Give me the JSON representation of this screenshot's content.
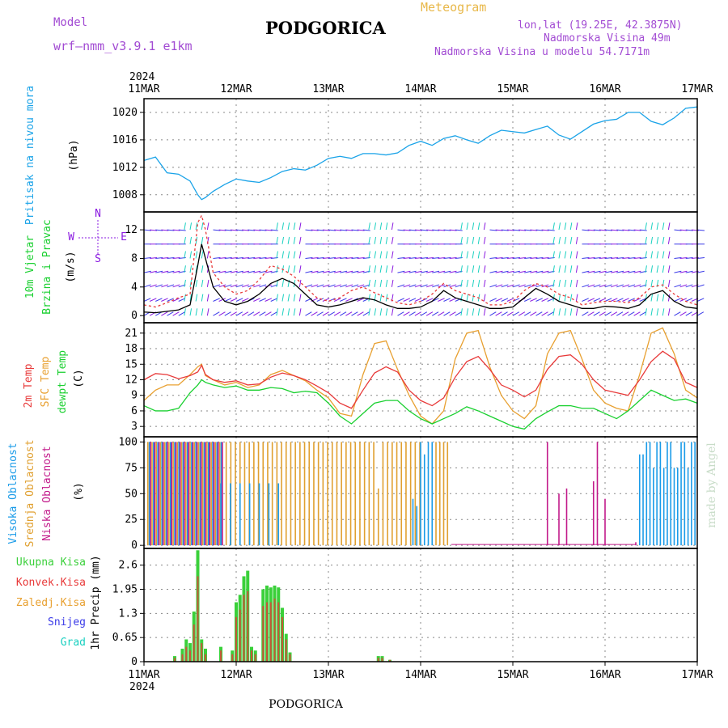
{
  "header": {
    "title": "PODGORICA",
    "meteogram": "Meteogram",
    "model_label": "Model",
    "model_name": "wrf—nmm_v3.9.1  e1km",
    "lonlat": "lon,lat (19.25E, 42.3875N)",
    "elevation": "Nadmorska Visina 49m",
    "elevation_model": "Nadmorska Visina u modelu 54.7171m"
  },
  "footer": {
    "station": "PODGORICA",
    "credit": "made by Angel"
  },
  "colors": {
    "pressure": "#1aa3e8",
    "wind_speed": "#000000",
    "wind_gust": "#e83a3a",
    "barb_blue": "#3a3ae8",
    "barb_purple": "#8a1ae0",
    "barb_teal": "#1ad0c0",
    "barb_green": "#1ad030",
    "temp2m": "#e83a3a",
    "temp_sfc": "#e8a030",
    "dewpoint": "#1ad030",
    "cloud_high": "#1a9be8",
    "cloud_mid": "#e0a030",
    "cloud_low": "#c21a8a",
    "precip_total": "#3ad03a",
    "precip_conv": "#e83a3a"
  },
  "chart_data": {
    "type": "line",
    "year": "2024",
    "x_ticks": [
      "11MAR",
      "12MAR",
      "13MAR",
      "14MAR",
      "15MAR",
      "16MAR",
      "17MAR"
    ],
    "panels": [
      {
        "id": "pressure",
        "ylabel": [
          "Pritisak na nivou mora",
          "(hPa)"
        ],
        "yticks": [
          1008,
          1012,
          1016,
          1020
        ],
        "ylim": [
          1005.5,
          1022
        ],
        "series": [
          {
            "name": "Pritisak na nivou mora",
            "x_hours": [
              0,
              3,
              6,
              9,
              12,
              14,
              15,
              16,
              18,
              21,
              24,
              27,
              30,
              33,
              36,
              39,
              42,
              45,
              48,
              51,
              54,
              57,
              60,
              63,
              66,
              69,
              72,
              75,
              78,
              81,
              84,
              87,
              90,
              93,
              96,
              99,
              102,
              105,
              108,
              111,
              114,
              117,
              120,
              123,
              126,
              129,
              132,
              135,
              138,
              141,
              144
            ],
            "values": [
              1013,
              1013.5,
              1011.2,
              1011,
              1010,
              1008,
              1007.3,
              1007.6,
              1008.5,
              1009.5,
              1010.3,
              1010,
              1009.8,
              1010.5,
              1011.4,
              1011.8,
              1011.6,
              1012.3,
              1013.3,
              1013.6,
              1013.3,
              1014,
              1014,
              1013.8,
              1014.1,
              1015.2,
              1015.8,
              1015.2,
              1016.2,
              1016.6,
              1016,
              1015.5,
              1016.6,
              1017.4,
              1017.2,
              1017,
              1017.5,
              1018,
              1016.7,
              1016.1,
              1017.2,
              1018.3,
              1018.8,
              1019,
              1020,
              1020,
              1018.7,
              1018.2,
              1019.2,
              1020.6,
              1020.8
            ]
          }
        ]
      },
      {
        "id": "wind",
        "ylabel": [
          "10m Vjetar",
          "Brzina i Pravac",
          "(m/s)"
        ],
        "compass": [
          "N",
          "W",
          "E",
          "S"
        ],
        "yticks": [
          0,
          4,
          8,
          12
        ],
        "ylim": [
          -1,
          14.5
        ],
        "series": [
          {
            "name": "speed",
            "x_hours": [
              0,
              3,
              6,
              9,
              12,
              14,
              15,
              16,
              18,
              21,
              24,
              27,
              30,
              33,
              36,
              39,
              42,
              45,
              48,
              51,
              54,
              57,
              60,
              63,
              66,
              69,
              72,
              75,
              78,
              81,
              84,
              87,
              90,
              93,
              96,
              99,
              102,
              105,
              108,
              111,
              114,
              117,
              120,
              123,
              126,
              129,
              132,
              135,
              138,
              141,
              144
            ],
            "values": [
              0.5,
              0.4,
              0.6,
              0.8,
              1.5,
              7,
              10,
              8,
              4,
              2,
              1.5,
              2,
              3,
              4.5,
              5.2,
              4.5,
              3,
              1.5,
              1.2,
              1.5,
              2,
              2.5,
              2.2,
              1.5,
              1,
              1,
              1.2,
              2,
              3.5,
              2.5,
              2,
              1.5,
              1,
              1,
              1.2,
              2.5,
              3.8,
              3,
              2,
              1.5,
              1,
              1,
              1.3,
              1.2,
              1,
              1.5,
              3,
              3.5,
              2,
              1.2,
              1
            ]
          },
          {
            "name": "gust",
            "x_hours": [
              0,
              3,
              6,
              9,
              12,
              14,
              15,
              16,
              18,
              21,
              24,
              27,
              30,
              33,
              36,
              39,
              42,
              45,
              48,
              51,
              54,
              57,
              60,
              63,
              66,
              69,
              72,
              75,
              78,
              81,
              84,
              87,
              90,
              93,
              96,
              99,
              102,
              105,
              108,
              111,
              114,
              117,
              120,
              123,
              126,
              129,
              132,
              135,
              138,
              141,
              144
            ],
            "values": [
              1.5,
              1.2,
              1.8,
              2.5,
              3,
              13,
              14,
              12,
              6,
              4,
              3,
              3.5,
              5,
              7,
              6.5,
              5.5,
              4,
              2.5,
              2,
              2.5,
              3.5,
              4,
              3.2,
              2.5,
              1.8,
              1.5,
              2,
              3,
              4.5,
              3.5,
              3,
              2.5,
              1.5,
              1.5,
              2,
              3.5,
              4.5,
              4,
              3,
              2.5,
              1.5,
              1.8,
              2,
              2,
              1.8,
              2.5,
              4,
              4.3,
              3,
              2,
              1.5
            ]
          }
        ]
      },
      {
        "id": "temperature",
        "ylabel": [
          "2m Temp",
          "SFC Temp",
          "dewpt Temp",
          "(C)"
        ],
        "yticks": [
          3,
          6,
          9,
          12,
          15,
          18,
          21
        ],
        "ylim": [
          1,
          23
        ],
        "series": [
          {
            "name": "2m Temp",
            "x_hours": [
              0,
              3,
              6,
              9,
              12,
              14,
              15,
              16,
              18,
              21,
              24,
              27,
              30,
              33,
              36,
              39,
              42,
              45,
              48,
              51,
              54,
              57,
              60,
              63,
              66,
              69,
              72,
              75,
              78,
              81,
              84,
              87,
              90,
              93,
              96,
              99,
              102,
              105,
              108,
              111,
              114,
              117,
              120,
              123,
              126,
              129,
              132,
              135,
              138,
              141,
              144
            ],
            "values": [
              12,
              13.2,
              13,
              12.2,
              12.8,
              13.5,
              14.8,
              13,
              12,
              11.5,
              11.8,
              11,
              11.2,
              12.5,
              13.3,
              12.8,
              12,
              10.8,
              9.5,
              7.5,
              6.5,
              10,
              13.3,
              14.5,
              13.5,
              10,
              8,
              7,
              8.5,
              12.5,
              15.5,
              16.5,
              14,
              11,
              10,
              8.7,
              10,
              14,
              16.5,
              16.8,
              15,
              12,
              10,
              9.5,
              9,
              12,
              15.5,
              17.5,
              16,
              11.5,
              10.5
            ]
          },
          {
            "name": "SFC Temp",
            "x_hours": [
              0,
              3,
              6,
              9,
              12,
              14,
              15,
              16,
              18,
              21,
              24,
              27,
              30,
              33,
              36,
              39,
              42,
              45,
              48,
              51,
              54,
              57,
              60,
              63,
              66,
              69,
              72,
              75,
              78,
              81,
              84,
              87,
              90,
              93,
              96,
              99,
              102,
              105,
              108,
              111,
              114,
              117,
              120,
              123,
              126,
              129,
              132,
              135,
              138,
              141,
              144
            ],
            "values": [
              8,
              10,
              11,
              11,
              13,
              14.5,
              15,
              12.8,
              12,
              11,
              11.5,
              10.5,
              11,
              13,
              13.8,
              12.8,
              11.8,
              10,
              8.5,
              5.5,
              5,
              13,
              19,
              19.5,
              14,
              9,
              5,
              3.5,
              6,
              16,
              21,
              21.5,
              14.5,
              9,
              6,
              4.5,
              7,
              17,
              21,
              21.5,
              16,
              10,
              7.5,
              6.5,
              6,
              13,
              21,
              22,
              17,
              10,
              8.5
            ]
          },
          {
            "name": "dewpt Temp",
            "x_hours": [
              0,
              3,
              6,
              9,
              12,
              14,
              15,
              16,
              18,
              21,
              24,
              27,
              30,
              33,
              36,
              39,
              42,
              45,
              48,
              51,
              54,
              57,
              60,
              63,
              66,
              69,
              72,
              75,
              78,
              81,
              84,
              87,
              90,
              93,
              96,
              99,
              102,
              105,
              108,
              111,
              114,
              117,
              120,
              123,
              126,
              129,
              132,
              135,
              138,
              141,
              144
            ],
            "values": [
              7,
              6,
              6,
              6.5,
              9.5,
              11,
              12,
              11.5,
              11,
              10.5,
              10.8,
              10,
              10,
              10.5,
              10.3,
              9.5,
              9.8,
              9.5,
              7.5,
              5,
              3.5,
              5.5,
              7.5,
              8,
              8,
              6,
              4.5,
              3.5,
              4.5,
              5.5,
              6.8,
              6,
              5,
              4,
              3,
              2.5,
              4.5,
              5.8,
              7,
              7,
              6.5,
              6.5,
              5.5,
              4.5,
              6,
              8,
              10,
              9,
              8,
              8.3,
              7.5
            ]
          }
        ]
      },
      {
        "id": "clouds",
        "ylabel": [
          "Visoka Oblacnost",
          "Srednja Oblacnost",
          "Niska Oblacnost",
          "(%)"
        ],
        "yticks": [
          0,
          25,
          50,
          75,
          100
        ],
        "ylim": [
          -3,
          105
        ],
        "series": [
          {
            "name": "Visoka Oblacnost",
            "approx": "full cover 3–20h, 108–17h; scattered 27–33h, 72–75h, 126–144h; ~0 elsewhere"
          },
          {
            "name": "Srednja Oblacnost",
            "approx": "full cover 3–23h and 23–72h; partial 72–78h; ~0 after 80h"
          },
          {
            "name": "Niska Oblacnost",
            "approx": "100% 4–18h; isolated spikes at 105h, 108h, 110h, 117h, 119h, 120h, 127h"
          }
        ]
      },
      {
        "id": "precip",
        "ylabel": [
          "1hr Precip (mm)"
        ],
        "legend": [
          "Ukupna Kisa",
          "Konvek.Kisa",
          "Zaledj.Kisa",
          "Snijeg",
          "Grad"
        ],
        "yticks": [
          0,
          0.65,
          1.3,
          1.95,
          2.6
        ],
        "ylim": [
          0,
          3.05
        ],
        "bars": [
          {
            "x_hour": 8,
            "total": 0.15,
            "conv": 0.1
          },
          {
            "x_hour": 10,
            "total": 0.35,
            "conv": 0.2
          },
          {
            "x_hour": 11,
            "total": 0.6,
            "conv": 0.4
          },
          {
            "x_hour": 12,
            "total": 0.5,
            "conv": 0.3
          },
          {
            "x_hour": 13,
            "total": 1.35,
            "conv": 1.0
          },
          {
            "x_hour": 14,
            "total": 3.0,
            "conv": 2.3
          },
          {
            "x_hour": 15,
            "total": 0.6,
            "conv": 0.5
          },
          {
            "x_hour": 16,
            "total": 0.35,
            "conv": 0.2
          },
          {
            "x_hour": 20,
            "total": 0.4,
            "conv": 0.3
          },
          {
            "x_hour": 23,
            "total": 0.3,
            "conv": 0.2
          },
          {
            "x_hour": 24,
            "total": 1.6,
            "conv": 1.2
          },
          {
            "x_hour": 25,
            "total": 1.8,
            "conv": 1.4
          },
          {
            "x_hour": 26,
            "total": 2.3,
            "conv": 1.8
          },
          {
            "x_hour": 27,
            "total": 2.45,
            "conv": 1.9
          },
          {
            "x_hour": 28,
            "total": 0.4,
            "conv": 0.3
          },
          {
            "x_hour": 29,
            "total": 0.3,
            "conv": 0.2
          },
          {
            "x_hour": 31,
            "total": 1.95,
            "conv": 1.5
          },
          {
            "x_hour": 32,
            "total": 2.05,
            "conv": 1.6
          },
          {
            "x_hour": 33,
            "total": 2.0,
            "conv": 1.6
          },
          {
            "x_hour": 34,
            "total": 2.05,
            "conv": 1.7
          },
          {
            "x_hour": 35,
            "total": 2.0,
            "conv": 1.6
          },
          {
            "x_hour": 36,
            "total": 1.45,
            "conv": 1.2
          },
          {
            "x_hour": 37,
            "total": 0.75,
            "conv": 0.6
          },
          {
            "x_hour": 38,
            "total": 0.25,
            "conv": 0.2
          },
          {
            "x_hour": 61,
            "total": 0.15,
            "conv": 0.1
          },
          {
            "x_hour": 62,
            "total": 0.15,
            "conv": 0.1
          },
          {
            "x_hour": 64,
            "total": 0.05,
            "conv": 0.05
          }
        ]
      }
    ]
  }
}
